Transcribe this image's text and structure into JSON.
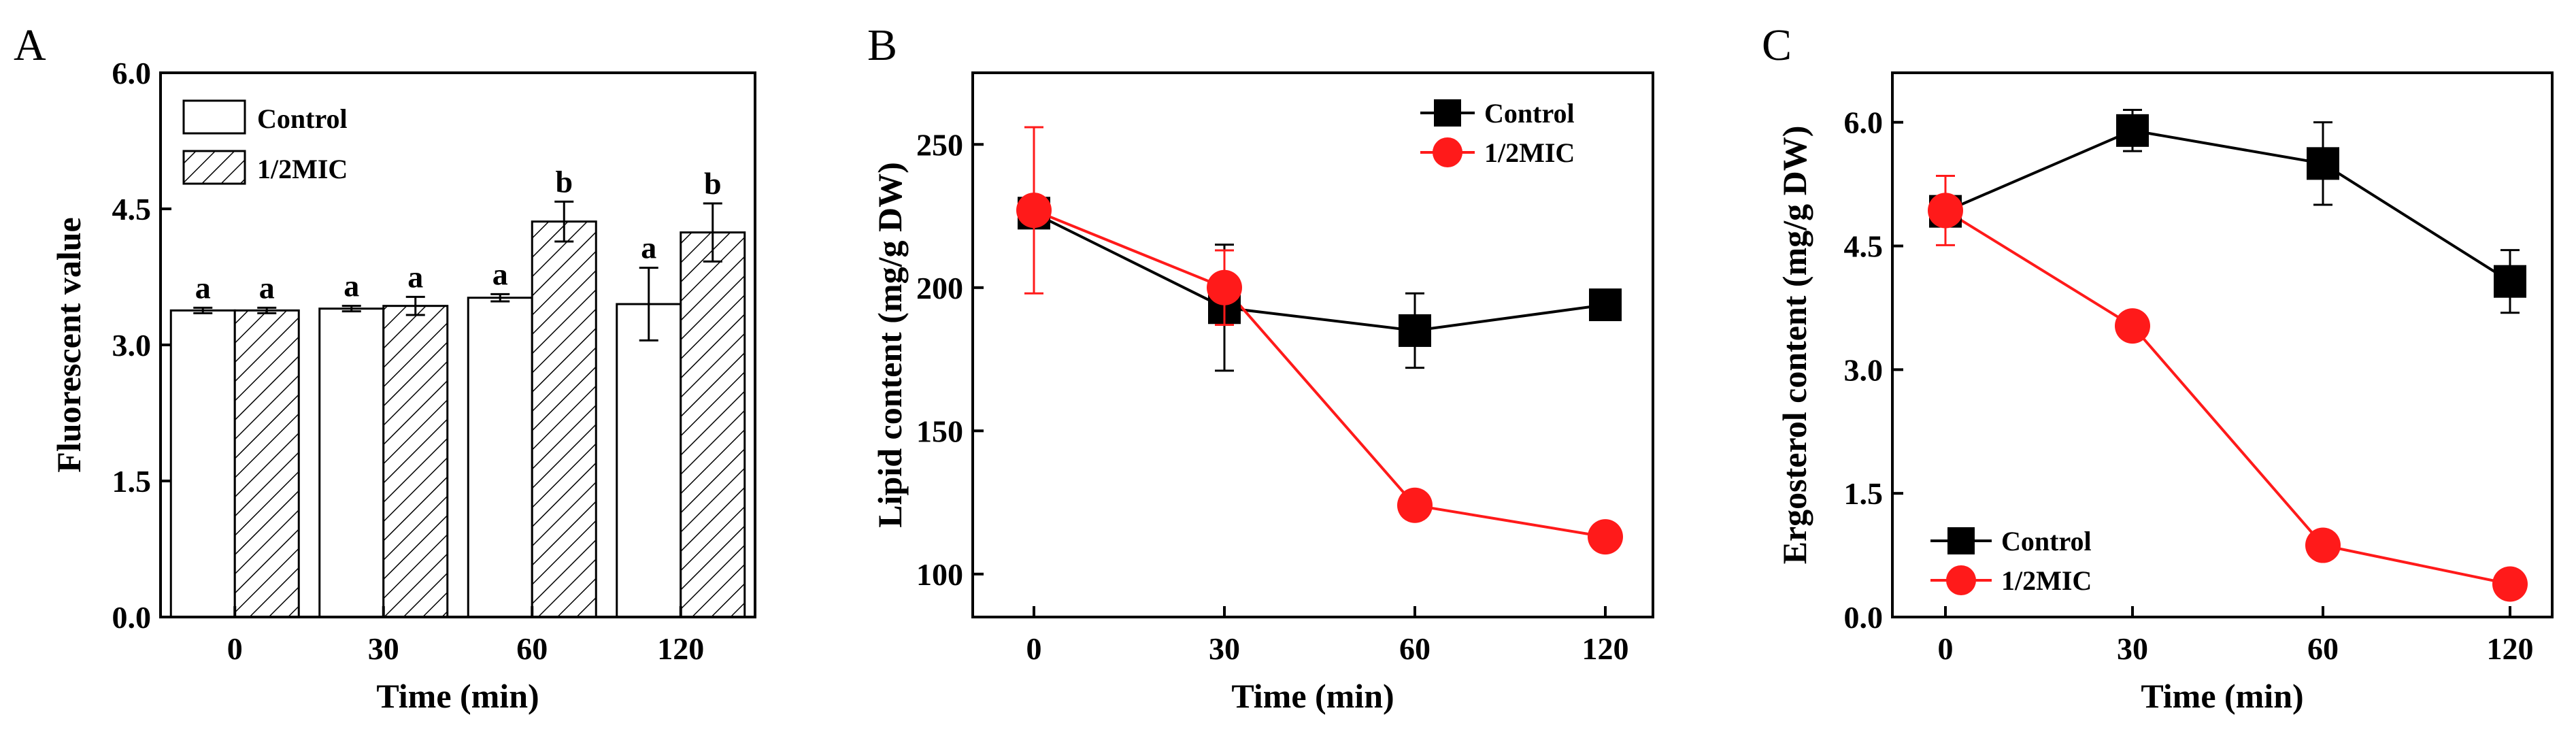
{
  "chart_data": [
    {
      "panel": "A",
      "type": "bar",
      "xlabel": "Time (min)",
      "ylabel": "Fluorescent value",
      "categories": [
        "0",
        "30",
        "60",
        "120"
      ],
      "ylim": [
        0.0,
        6.0
      ],
      "yticks": [
        "0.0",
        "1.5",
        "3.0",
        "4.5",
        "6.0"
      ],
      "ytick_values": [
        0.0,
        1.5,
        3.0,
        4.5,
        6.0
      ],
      "legend": {
        "position": "top-left"
      },
      "series": [
        {
          "name": "Control",
          "pattern": "none",
          "values": [
            3.38,
            3.4,
            3.52,
            3.45
          ],
          "errors": [
            0.03,
            0.03,
            0.04,
            0.4
          ],
          "labels": [
            "a",
            "a",
            "a",
            "a"
          ]
        },
        {
          "name": "1/2MIC",
          "pattern": "hatch",
          "values": [
            3.38,
            3.43,
            4.36,
            4.24
          ],
          "errors": [
            0.03,
            0.1,
            0.22,
            0.32
          ],
          "labels": [
            "a",
            "a",
            "b",
            "b"
          ]
        }
      ]
    },
    {
      "panel": "B",
      "type": "line",
      "xlabel": "Time (min)",
      "ylabel": "Lipid content (mg/g  DW)",
      "x": [
        0,
        30,
        60,
        120
      ],
      "xticks": [
        "0",
        "30",
        "60",
        "120"
      ],
      "ylim": [
        85,
        275
      ],
      "yticks": [
        "100",
        "150",
        "200",
        "250"
      ],
      "ytick_values": [
        100,
        150,
        200,
        250
      ],
      "legend": {
        "position": "top-right"
      },
      "series": [
        {
          "name": "Control",
          "marker": "square",
          "color": "#000000",
          "values": [
            226,
            193,
            185,
            194
          ],
          "errors": [
            2,
            22,
            13,
            2
          ]
        },
        {
          "name": "1/2MIC",
          "marker": "circle",
          "color": "#ff1a1a",
          "values": [
            227,
            200,
            124,
            113
          ],
          "errors": [
            29,
            13,
            2,
            2
          ]
        }
      ]
    },
    {
      "panel": "C",
      "type": "line",
      "xlabel": "Time (min)",
      "ylabel": "Ergosterol content (mg/g DW)",
      "x": [
        0,
        30,
        60,
        120
      ],
      "xticks": [
        "0",
        "30",
        "60",
        "120"
      ],
      "ylim": [
        0.0,
        6.6
      ],
      "yticks": [
        "0.0",
        "1.5",
        "3.0",
        "4.5",
        "6.0"
      ],
      "ytick_values": [
        0.0,
        1.5,
        3.0,
        4.5,
        6.0
      ],
      "legend": {
        "position": "bottom-left"
      },
      "series": [
        {
          "name": "Control",
          "marker": "square",
          "color": "#000000",
          "values": [
            4.92,
            5.9,
            5.5,
            4.07
          ],
          "errors": [
            0.08,
            0.25,
            0.5,
            0.38
          ]
        },
        {
          "name": "1/2MIC",
          "marker": "circle",
          "color": "#ff1a1a",
          "values": [
            4.93,
            3.53,
            0.87,
            0.4
          ],
          "errors": [
            0.42,
            0.06,
            0.06,
            0.06
          ]
        }
      ]
    }
  ],
  "colors": {
    "axis": "#000000",
    "control": "#000000",
    "mic": "#ff1a1a",
    "bar_fill": "#ffffff"
  }
}
